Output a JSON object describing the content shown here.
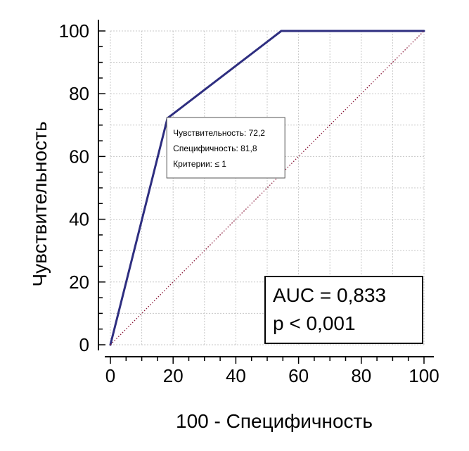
{
  "chart_data": {
    "type": "line",
    "xlabel": "100 - Специфичность",
    "ylabel": "Чувствительность",
    "xlim": [
      0,
      100
    ],
    "ylim": [
      0,
      100
    ],
    "x_ticks": [
      0,
      20,
      40,
      60,
      80,
      100
    ],
    "y_ticks": [
      0,
      20,
      40,
      60,
      80,
      100
    ],
    "grid": true,
    "series": [
      {
        "color": "#2e2e80",
        "style": "solid",
        "x": [
          0,
          18.2,
          54.5,
          100
        ],
        "y": [
          0,
          72.2,
          100,
          100
        ]
      },
      {
        "color": "#8b1a3a",
        "style": "dotted",
        "x": [
          0,
          100
        ],
        "y": [
          0,
          100
        ]
      }
    ],
    "tooltip": {
      "anchor": {
        "x": 18.2,
        "y": 72.2
      },
      "lines": [
        "Чувствительность: 72,2",
        "Специфичность: 81,8",
        "Критерии: ≤ 1"
      ]
    },
    "stats_box": {
      "lines": [
        "AUC = 0,833",
        "p < 0,001"
      ]
    }
  }
}
